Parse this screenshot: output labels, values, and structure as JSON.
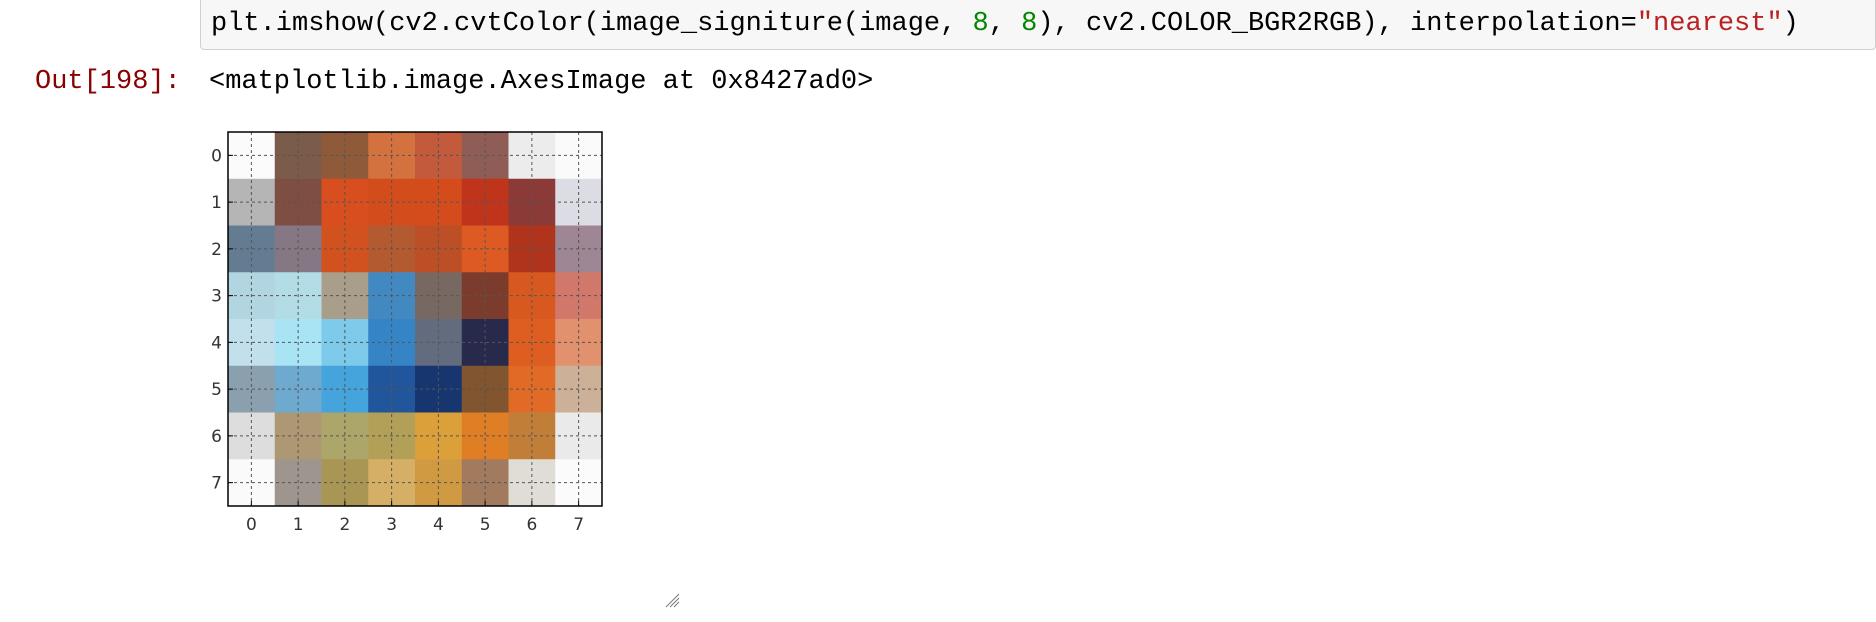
{
  "input_cell": {
    "code_parts": [
      {
        "text": "plt.imshow(cv2.cvtColor(image_signiture(image, ",
        "kind": "plain"
      },
      {
        "text": "8",
        "kind": "num"
      },
      {
        "text": ", ",
        "kind": "plain"
      },
      {
        "text": "8",
        "kind": "num"
      },
      {
        "text": "), cv2.COLOR_BGR2RGB), interpolation=",
        "kind": "plain"
      },
      {
        "text": "\"nearest\"",
        "kind": "str"
      },
      {
        "text": ")",
        "kind": "plain"
      }
    ]
  },
  "output": {
    "prompt": "Out[198]:",
    "text": "<matplotlib.image.AxesImage at 0x8427ad0>"
  },
  "chart_data": {
    "type": "heatmap",
    "title": "",
    "xlabel": "",
    "ylabel": "",
    "x_ticks": [
      "0",
      "1",
      "2",
      "3",
      "4",
      "5",
      "6",
      "7"
    ],
    "y_ticks": [
      "0",
      "1",
      "2",
      "3",
      "4",
      "5",
      "6",
      "7"
    ],
    "grid": true,
    "grid_style": "dashed",
    "cells": [
      [
        "#fbfbfb",
        "#7b5c4a",
        "#8e5a3a",
        "#d3723f",
        "#c35a3b",
        "#8f5d55",
        "#ececec",
        "#fafafa"
      ],
      [
        "#b5b5b5",
        "#7e4e42",
        "#d84e1e",
        "#d34c1b",
        "#d44b1c",
        "#c0341b",
        "#8c3a37",
        "#dcdde4"
      ],
      [
        "#637c92",
        "#857784",
        "#d2521f",
        "#b45a30",
        "#bc4f25",
        "#dd5b23",
        "#b0341b",
        "#9e8695"
      ],
      [
        "#b2d5e2",
        "#b2dde6",
        "#a99e89",
        "#4189c0",
        "#786862",
        "#7b3c2d",
        "#d85920",
        "#d1786a"
      ],
      [
        "#c2e0ec",
        "#a8e4f4",
        "#7dcaea",
        "#3584c6",
        "#636c7e",
        "#272a4a",
        "#de5e21",
        "#e1916d"
      ],
      [
        "#8aa0ae",
        "#6eaacf",
        "#46a4dc",
        "#21559c",
        "#173670",
        "#80552f",
        "#e16b26",
        "#cdb098"
      ],
      [
        "#dddddd",
        "#ad9873",
        "#aca66a",
        "#b3a058",
        "#dba039",
        "#e07e25",
        "#c07e38",
        "#eaeaea"
      ],
      [
        "#fafafa",
        "#9e958e",
        "#a99654",
        "#d6af66",
        "#cf9a42",
        "#a27b5e",
        "#e0ddd7",
        "#fbfbfb"
      ]
    ]
  }
}
